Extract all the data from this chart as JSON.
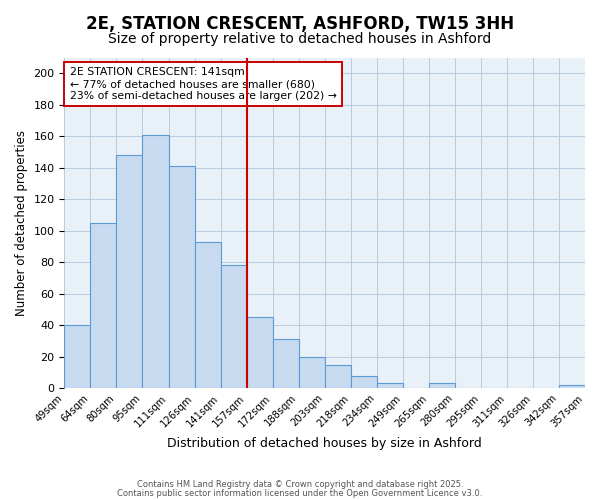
{
  "title": "2E, STATION CRESCENT, ASHFORD, TW15 3HH",
  "subtitle": "Size of property relative to detached houses in Ashford",
  "xlabel": "Distribution of detached houses by size in Ashford",
  "ylabel": "Number of detached properties",
  "bin_labels": [
    "49sqm",
    "64sqm",
    "80sqm",
    "95sqm",
    "111sqm",
    "126sqm",
    "141sqm",
    "157sqm",
    "172sqm",
    "188sqm",
    "203sqm",
    "218sqm",
    "234sqm",
    "249sqm",
    "265sqm",
    "280sqm",
    "295sqm",
    "311sqm",
    "326sqm",
    "342sqm",
    "357sqm"
  ],
  "bar_values": [
    40,
    105,
    148,
    161,
    141,
    93,
    78,
    45,
    31,
    20,
    15,
    8,
    3,
    0,
    3,
    0,
    0,
    0,
    0,
    2
  ],
  "bar_color": "#c8daf0",
  "bar_edgecolor": "#5b9bd5",
  "ylim": [
    0,
    210
  ],
  "yticks": [
    0,
    20,
    40,
    60,
    80,
    100,
    120,
    140,
    160,
    180,
    200
  ],
  "vline_x": 6.5,
  "vline_color": "#cc0000",
  "annotation_title": "2E STATION CRESCENT: 141sqm",
  "annotation_line1": "← 77% of detached houses are smaller (680)",
  "annotation_line2": "23% of semi-detached houses are larger (202) →",
  "annotation_box_color": "#ffffff",
  "annotation_box_edgecolor": "#cc0000",
  "footer1": "Contains HM Land Registry data © Crown copyright and database right 2025.",
  "footer2": "Contains public sector information licensed under the Open Government Licence v3.0.",
  "background_color": "#ffffff",
  "plot_bg_color": "#e8f0f8",
  "grid_color": "#b8cce0",
  "title_fontsize": 12,
  "subtitle_fontsize": 10
}
